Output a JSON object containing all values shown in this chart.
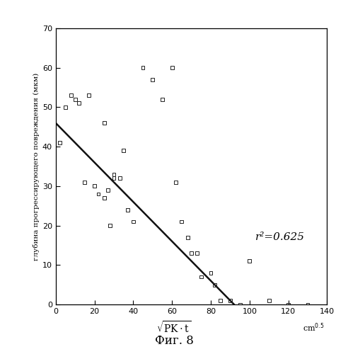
{
  "scatter_x": [
    2,
    5,
    8,
    10,
    12,
    15,
    17,
    20,
    22,
    25,
    25,
    27,
    28,
    30,
    30,
    33,
    35,
    37,
    40,
    45,
    50,
    55,
    60,
    62,
    65,
    68,
    70,
    73,
    75,
    80,
    82,
    85,
    90,
    95,
    100,
    110,
    120,
    130
  ],
  "scatter_y": [
    41,
    50,
    53,
    52,
    51,
    31,
    53,
    30,
    28,
    27,
    46,
    29,
    20,
    33,
    32,
    32,
    39,
    24,
    21,
    60,
    57,
    52,
    60,
    31,
    21,
    17,
    13,
    13,
    7,
    8,
    5,
    1,
    1,
    0,
    11,
    1,
    0,
    0
  ],
  "line_x": [
    0,
    92
  ],
  "line_y": [
    46,
    0
  ],
  "r2_text": "r²=0.625",
  "r2_x": 103,
  "r2_y": 17,
  "ylabel": "глубина прогрессирующего повреждения (мкм)",
  "fig_label": "Фиг. 8",
  "xlim": [
    0,
    140
  ],
  "ylim": [
    0,
    70
  ],
  "xticks": [
    0,
    20,
    40,
    60,
    80,
    100,
    120,
    140
  ],
  "yticks": [
    0,
    10,
    20,
    30,
    40,
    50,
    60,
    70
  ],
  "marker_color": "#222222",
  "line_color": "#111111",
  "bg_color": "white",
  "marker_size": 12,
  "xlabel_sqrt": "$\\sqrt{\\mathregular{PK \\cdot t}}$",
  "xlabel_unit": "cm$^{0.5}$"
}
